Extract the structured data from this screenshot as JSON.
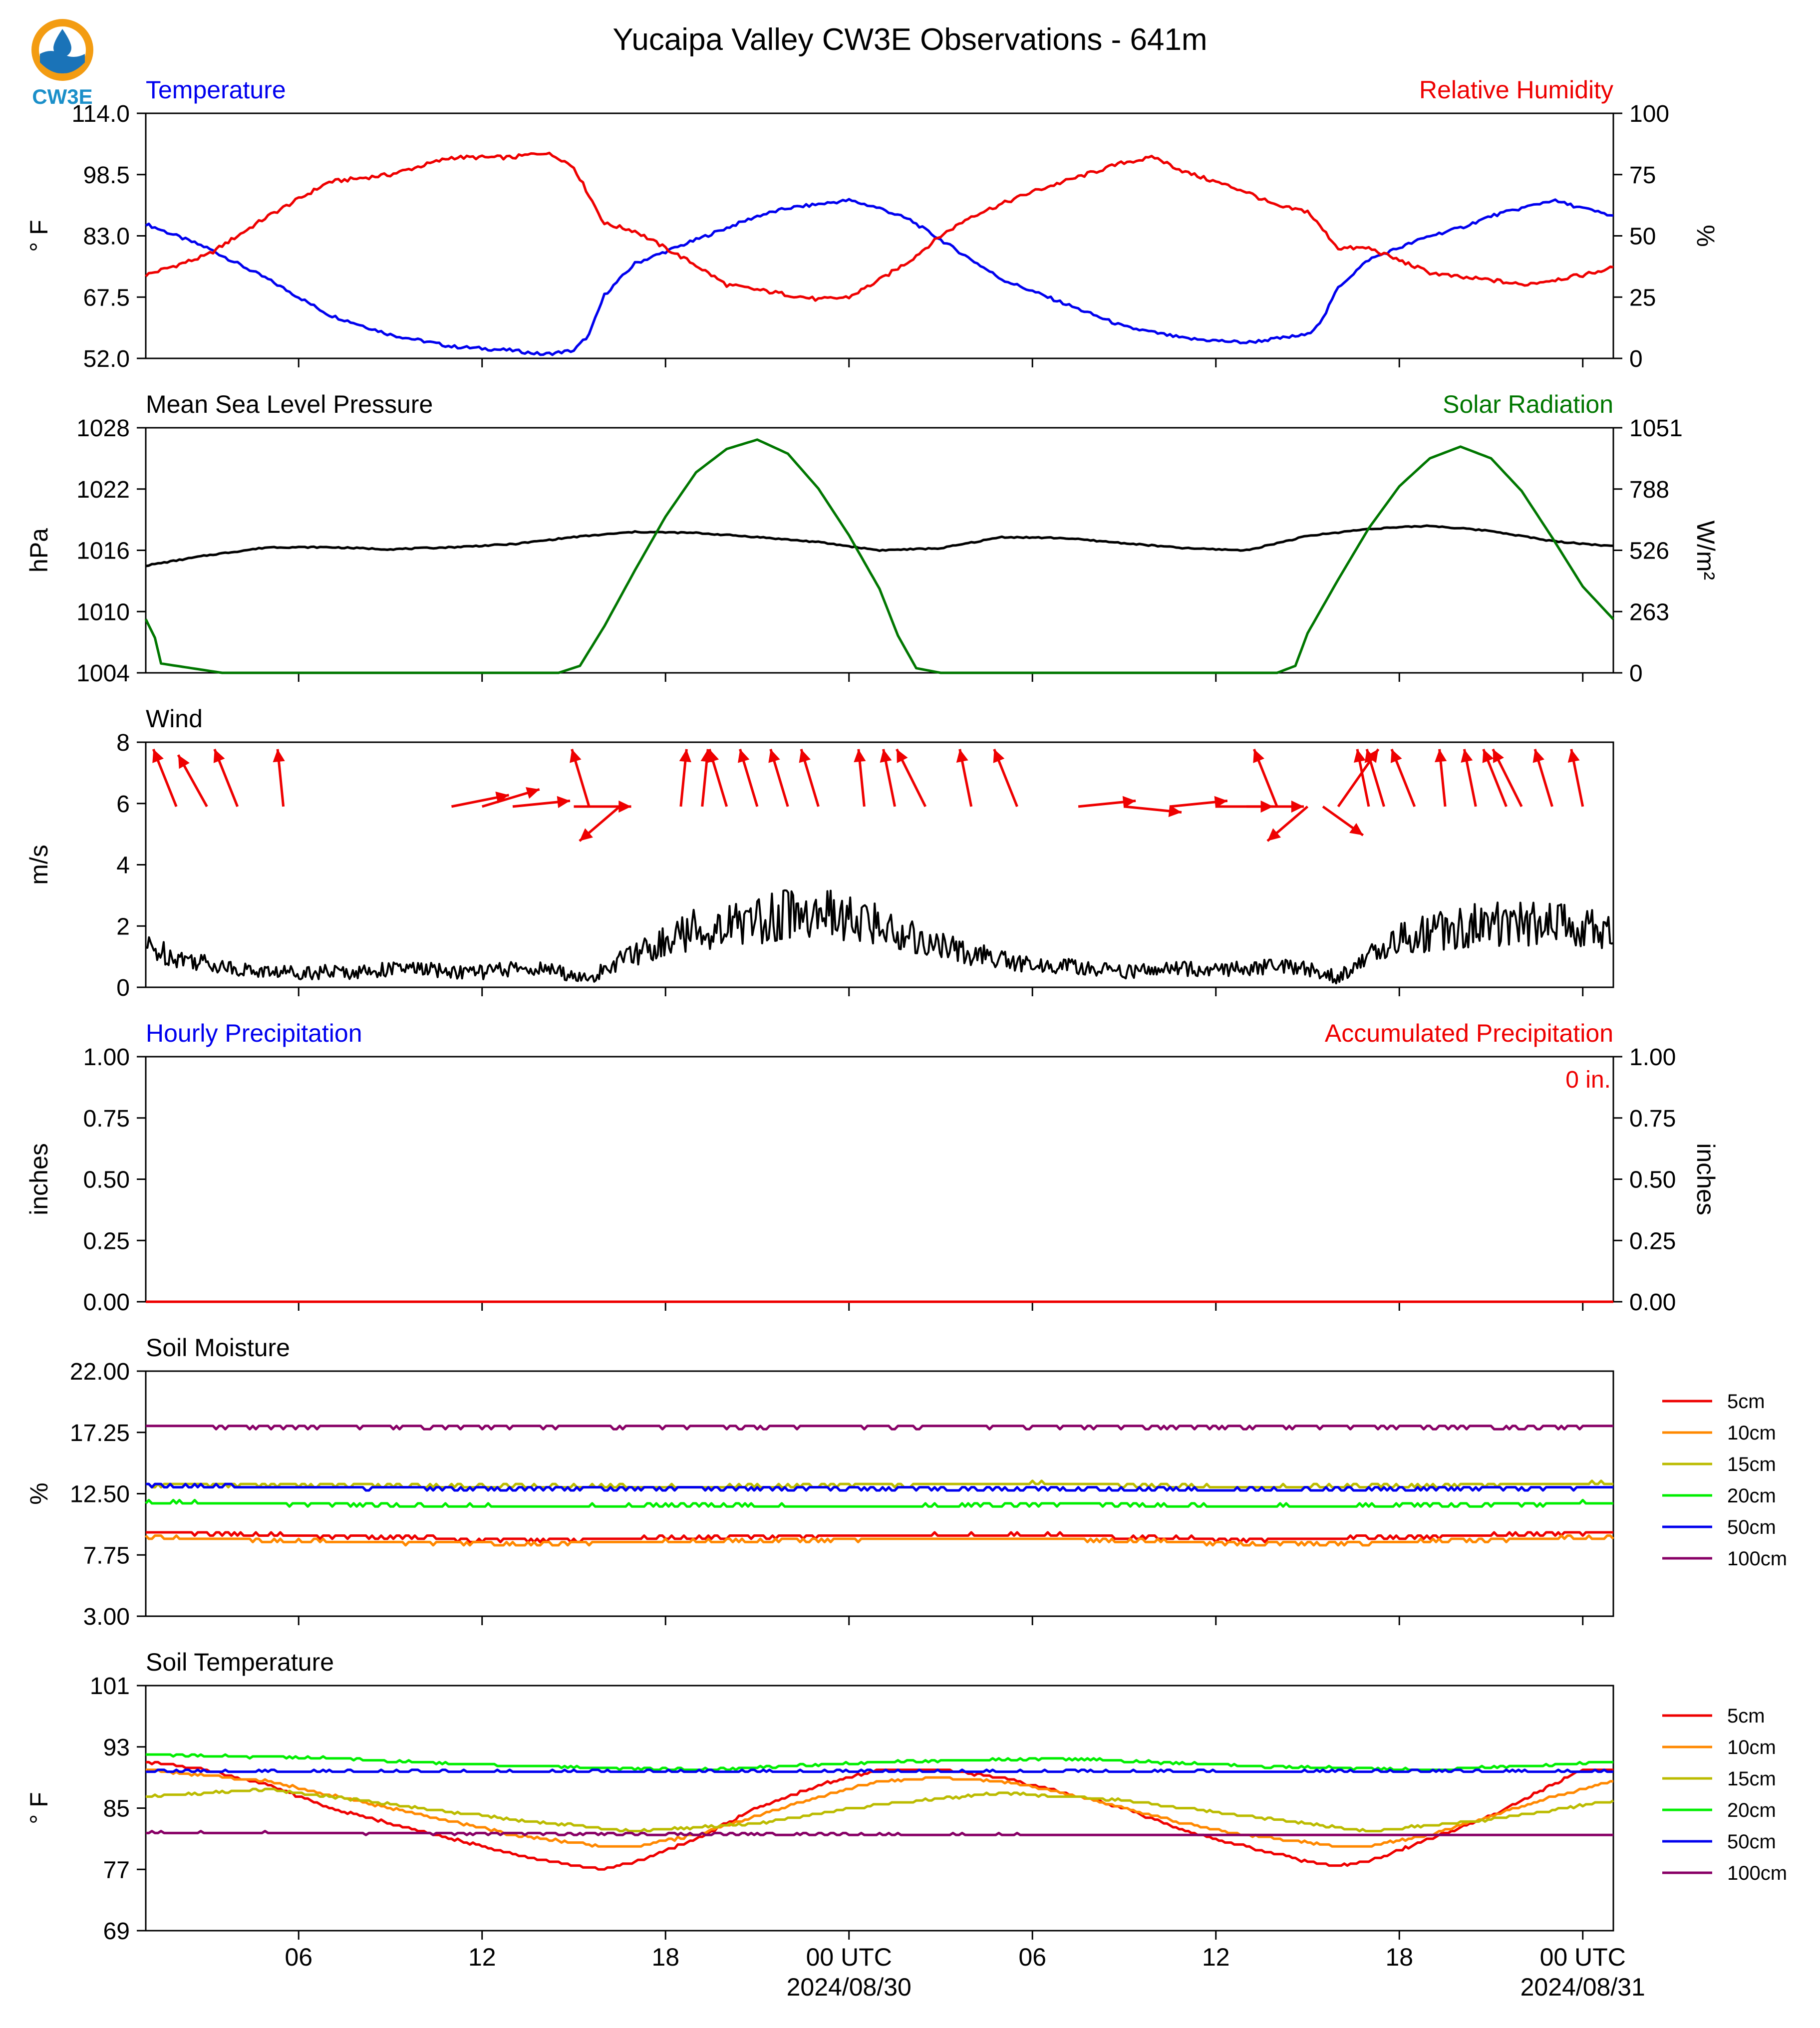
{
  "page": {
    "title": "Yucaipa Valley CW3E Observations - 641m",
    "logo_text": "CW3E",
    "colors": {
      "blue": "#0000ee",
      "red": "#ee0000",
      "green": "#007700",
      "black": "#000000"
    }
  },
  "chart_data": [
    {
      "id": "temp-rh",
      "type": "line",
      "title": "Temperature",
      "title_right": "Relative Humidity",
      "ylabel": "° F",
      "ylabel_right": "%",
      "ylim": [
        52.0,
        114.0
      ],
      "yticks": [
        "52.0",
        "67.5",
        "83.0",
        "98.5",
        "114.0"
      ],
      "ylim_right": [
        0,
        100
      ],
      "yticks_right": [
        "0",
        "25",
        "50",
        "75",
        "100"
      ],
      "series": [
        {
          "name": "Temperature",
          "color": "#0000ee",
          "axis": "left",
          "x": [
            0,
            2,
            4,
            6,
            8,
            10,
            12,
            13,
            14,
            14.5,
            15,
            16,
            17,
            18,
            19,
            20,
            21,
            22,
            23,
            24,
            25,
            26,
            27,
            28,
            30,
            32,
            34,
            36,
            37,
            38,
            38.5,
            39,
            40,
            41,
            42,
            43,
            44,
            45,
            46,
            47,
            48
          ],
          "values": [
            86,
            80,
            72,
            63,
            58,
            55,
            54,
            53,
            54,
            58,
            68,
            76,
            79,
            82,
            85,
            88,
            90,
            91,
            92,
            90,
            87,
            82,
            77,
            72,
            66,
            60,
            57,
            56,
            57,
            58,
            62,
            70,
            77,
            80,
            83,
            85,
            88,
            90,
            92,
            90,
            88
          ]
        },
        {
          "name": "Relative Humidity",
          "color": "#ee0000",
          "axis": "right",
          "x": [
            0,
            2,
            4,
            6,
            8,
            10,
            12,
            13,
            13.5,
            14,
            15,
            16,
            17,
            18,
            19,
            20,
            21,
            22,
            23,
            24,
            25,
            26,
            27,
            28,
            29,
            30,
            31,
            32,
            33,
            34,
            35,
            36,
            37,
            38,
            39,
            40,
            41,
            42,
            43,
            44,
            45,
            46,
            47,
            48
          ],
          "values": [
            34,
            42,
            58,
            72,
            75,
            82,
            82,
            84,
            82,
            78,
            55,
            52,
            45,
            38,
            30,
            28,
            26,
            24,
            25,
            32,
            40,
            50,
            58,
            63,
            68,
            72,
            76,
            80,
            82,
            76,
            72,
            68,
            62,
            60,
            45,
            45,
            40,
            35,
            33,
            32,
            30,
            32,
            34,
            37
          ]
        }
      ]
    },
    {
      "id": "pressure-solar",
      "type": "line",
      "title": "Mean Sea Level Pressure",
      "title_right": "Solar Radiation",
      "ylabel": "hPa",
      "ylabel_right": "W/m²",
      "ylim": [
        1004,
        1028
      ],
      "yticks": [
        "1004",
        "1010",
        "1016",
        "1022",
        "1028"
      ],
      "ylim_right": [
        0,
        1051
      ],
      "yticks_right": [
        "0",
        "263",
        "526",
        "788",
        "1051"
      ],
      "series": [
        {
          "name": "Mean Sea Level Pressure",
          "color": "#000000",
          "axis": "left",
          "x": [
            0,
            2,
            4,
            6,
            8,
            10,
            12,
            14,
            16,
            18,
            20,
            22,
            24,
            26,
            28,
            30,
            32,
            34,
            36,
            38,
            40,
            42,
            44,
            46,
            48
          ],
          "values": [
            1014.5,
            1015.5,
            1016.3,
            1016.3,
            1016.1,
            1016.3,
            1016.6,
            1017.3,
            1017.8,
            1017.7,
            1017.3,
            1016.8,
            1016.0,
            1016.2,
            1017.3,
            1017.2,
            1016.7,
            1016.2,
            1016.0,
            1017.4,
            1018.1,
            1018.4,
            1017.9,
            1016.9,
            1016.4
          ]
        },
        {
          "name": "Solar Radiation",
          "color": "#007700",
          "axis": "right",
          "x": [
            0,
            0.3,
            0.5,
            1.5,
            2.5,
            4,
            8,
            12,
            13.5,
            14.2,
            15,
            16,
            17,
            18,
            19,
            20,
            21,
            22,
            23,
            24,
            24.6,
            25.2,
            26,
            30,
            36,
            37,
            37.6,
            38,
            39,
            40,
            41,
            42,
            43,
            44,
            45,
            46,
            47,
            48
          ],
          "values": [
            230,
            150,
            40,
            20,
            0,
            0,
            0,
            0,
            0,
            30,
            200,
            440,
            670,
            860,
            960,
            1000,
            940,
            790,
            590,
            360,
            160,
            20,
            0,
            0,
            0,
            0,
            30,
            170,
            400,
            620,
            800,
            920,
            970,
            920,
            780,
            580,
            370,
            230
          ]
        }
      ]
    },
    {
      "id": "wind",
      "type": "line",
      "title": "Wind",
      "ylabel": "m/s",
      "ylim": [
        0,
        8
      ],
      "yticks": [
        "0",
        "2",
        "4",
        "6",
        "8"
      ],
      "series": [
        {
          "name": "Wind",
          "color": "#000000",
          "axis": "left",
          "x": [
            0,
            1,
            2,
            3,
            4,
            5,
            6,
            7,
            8,
            9,
            10,
            11,
            12,
            13,
            14,
            14.5,
            15,
            16,
            17,
            18,
            19,
            20,
            21,
            22,
            23,
            24,
            25,
            26,
            27,
            28,
            29,
            30,
            31,
            32,
            33,
            34,
            35,
            36,
            37,
            38,
            39,
            40,
            41,
            42,
            43,
            44,
            45,
            46,
            47,
            48
          ],
          "values": [
            1.3,
            1.0,
            0.8,
            0.6,
            0.5,
            0.5,
            0.5,
            0.5,
            0.6,
            0.6,
            0.5,
            0.5,
            0.6,
            0.6,
            0.4,
            0.2,
            0.6,
            1.1,
            1.5,
            1.9,
            2.0,
            2.2,
            2.4,
            2.4,
            2.2,
            2.0,
            1.7,
            1.3,
            1.1,
            0.9,
            0.7,
            0.7,
            0.6,
            0.5,
            0.6,
            0.6,
            0.6,
            0.6,
            0.7,
            0.6,
            0.3,
            1.0,
            1.6,
            1.8,
            2.0,
            2.1,
            2.1,
            2.0,
            2.0,
            1.8
          ]
        }
      ],
      "arrows": {
        "color": "#ee0000",
        "x": [
          1,
          2,
          3,
          4.5,
          10,
          11,
          12,
          14,
          14.5,
          15.5,
          17.5,
          18.2,
          19,
          20,
          21,
          22,
          23.5,
          24.5,
          25.5,
          27,
          28.5,
          30.5,
          32,
          33.5,
          35,
          36,
          37,
          38,
          38.5,
          39,
          40,
          40.5,
          41.5,
          42.5,
          43.5,
          44.5,
          45,
          46,
          47
        ],
        "u": [
          -0.4,
          -0.5,
          -0.4,
          -0.1,
          1.0,
          1.0,
          1.0,
          1.0,
          -0.3,
          -0.7,
          0.1,
          0.1,
          -0.3,
          -0.3,
          -0.3,
          -0.3,
          -0.1,
          -0.2,
          -0.5,
          -0.2,
          -0.4,
          1.0,
          1.0,
          1.0,
          1.0,
          1.0,
          -0.4,
          -0.7,
          0.7,
          0.7,
          -0.2,
          -0.3,
          -0.4,
          -0.1,
          -0.2,
          -0.4,
          -0.5,
          -0.3,
          -0.2
        ],
        "v": [
          1.0,
          0.9,
          1.0,
          1.0,
          0.2,
          0.3,
          0.1,
          0.0,
          1.0,
          -0.6,
          1.0,
          1.0,
          1.0,
          1.0,
          1.0,
          1.0,
          1.0,
          1.0,
          1.0,
          1.0,
          1.0,
          0.1,
          -0.1,
          0.1,
          0.0,
          0.0,
          1.0,
          -0.6,
          -0.5,
          1.0,
          1.0,
          1.0,
          1.0,
          1.0,
          1.0,
          1.0,
          1.0,
          1.0,
          1.0
        ]
      }
    },
    {
      "id": "precipitation",
      "type": "line",
      "title": "Hourly Precipitation",
      "title_right": "Accumulated Precipitation",
      "ylabel": "inches",
      "ylabel_right": "inches",
      "ylim": [
        0.0,
        1.0
      ],
      "yticks": [
        "0.00",
        "0.25",
        "0.50",
        "0.75",
        "1.00"
      ],
      "ylim_right": [
        0.0,
        1.0
      ],
      "yticks_right": [
        "0.00",
        "0.25",
        "0.50",
        "0.75",
        "1.00"
      ],
      "annotation": "0 in.",
      "series": [
        {
          "name": "Hourly Precipitation",
          "color": "#0000ee",
          "axis": "left",
          "x": [
            0,
            48
          ],
          "values": [
            0,
            0
          ]
        },
        {
          "name": "Accumulated Precipitation",
          "color": "#ee0000",
          "axis": "right",
          "x": [
            0,
            48
          ],
          "values": [
            0,
            0
          ]
        }
      ]
    },
    {
      "id": "soil-moisture",
      "type": "line",
      "title": "Soil Moisture",
      "ylabel": "%",
      "ylim": [
        3.0,
        22.0
      ],
      "yticks": [
        "3.00",
        "7.75",
        "12.50",
        "17.25",
        "22.00"
      ],
      "legend_position": "right",
      "series": [
        {
          "name": "5cm",
          "color": "#ee0000",
          "x": [
            0,
            6,
            12,
            18,
            24,
            30,
            36,
            42,
            48
          ],
          "values": [
            9.5,
            9.2,
            8.9,
            9.1,
            9.3,
            9.3,
            8.9,
            9.2,
            9.5
          ]
        },
        {
          "name": "10cm",
          "color": "#ff8800",
          "x": [
            0,
            6,
            12,
            18,
            24,
            30,
            36,
            42,
            48
          ],
          "values": [
            9.1,
            8.8,
            8.6,
            8.8,
            9.0,
            9.0,
            8.6,
            8.8,
            9.1
          ]
        },
        {
          "name": "15cm",
          "color": "#bbbb00",
          "x": [
            0,
            6,
            12,
            18,
            24,
            30,
            36,
            42,
            48
          ],
          "values": [
            13.2,
            13.2,
            13.1,
            13.0,
            13.2,
            13.3,
            13.0,
            13.1,
            13.3
          ]
        },
        {
          "name": "20cm",
          "color": "#00ee00",
          "x": [
            0,
            6,
            12,
            18,
            24,
            30,
            36,
            42,
            48
          ],
          "values": [
            11.8,
            11.7,
            11.5,
            11.6,
            11.5,
            11.7,
            11.5,
            11.6,
            11.8
          ]
        },
        {
          "name": "50cm",
          "color": "#0000ee",
          "x": [
            0,
            6,
            12,
            18,
            24,
            30,
            36,
            42,
            48
          ],
          "values": [
            13.1,
            13.0,
            12.9,
            12.9,
            12.9,
            12.9,
            12.8,
            12.9,
            13.0
          ]
        },
        {
          "name": "100cm",
          "color": "#880066",
          "x": [
            0,
            48
          ],
          "values": [
            17.7,
            17.7
          ]
        }
      ]
    },
    {
      "id": "soil-temperature",
      "type": "line",
      "title": "Soil Temperature",
      "ylabel": "° F",
      "ylim": [
        69,
        101
      ],
      "yticks": [
        "69",
        "77",
        "85",
        "93",
        "101"
      ],
      "legend_position": "right",
      "series": [
        {
          "name": "5cm",
          "color": "#ee0000",
          "x": [
            0,
            2,
            4,
            6,
            8,
            10,
            12,
            14,
            15,
            16,
            18,
            20,
            22,
            24,
            26,
            28,
            30,
            32,
            34,
            36,
            38,
            39,
            40,
            42,
            44,
            46,
            47,
            48
          ],
          "values": [
            91,
            90,
            88,
            85,
            83,
            81,
            79,
            77.5,
            77,
            78,
            81,
            85,
            88,
            90,
            90,
            89,
            87,
            85,
            82,
            80,
            78,
            77.5,
            78,
            81,
            84,
            88,
            90,
            90
          ]
        },
        {
          "name": "10cm",
          "color": "#ff8800",
          "x": [
            0,
            4,
            8,
            12,
            14,
            15,
            16,
            18,
            20,
            22,
            24,
            26,
            28,
            30,
            32,
            34,
            36,
            38,
            39,
            40,
            42,
            44,
            46,
            48
          ],
          "values": [
            90,
            88.5,
            85,
            81.5,
            80.5,
            80,
            80,
            81.5,
            84,
            86.5,
            88.5,
            89,
            88.5,
            87,
            85,
            83,
            81.5,
            80.5,
            80,
            80,
            81.5,
            84,
            86.5,
            88.5
          ]
        },
        {
          "name": "15cm",
          "color": "#bbbb00",
          "x": [
            0,
            4,
            8,
            12,
            16,
            20,
            24,
            28,
            32,
            36,
            40,
            44,
            48
          ],
          "values": [
            86.5,
            87.5,
            85.5,
            83.5,
            82,
            83,
            85.5,
            87,
            86,
            84,
            82,
            83.5,
            86
          ]
        },
        {
          "name": "20cm",
          "color": "#00ee00",
          "x": [
            0,
            6,
            12,
            18,
            24,
            30,
            36,
            42,
            48
          ],
          "values": [
            92,
            91.5,
            90.5,
            90,
            91,
            91.5,
            90.5,
            90,
            91
          ]
        },
        {
          "name": "50cm",
          "color": "#0000ee",
          "x": [
            0,
            48
          ],
          "values": [
            89.8,
            89.8
          ]
        },
        {
          "name": "100cm",
          "color": "#880066",
          "x": [
            0,
            10,
            20,
            30,
            48
          ],
          "values": [
            81.8,
            81.7,
            81.6,
            81.5,
            81.5
          ]
        }
      ]
    }
  ],
  "x_axis": {
    "range_hours": [
      0,
      48
    ],
    "ticks": [
      {
        "hour": 5,
        "label": "06",
        "date": ""
      },
      {
        "hour": 11,
        "label": "12",
        "date": ""
      },
      {
        "hour": 17,
        "label": "18",
        "date": ""
      },
      {
        "hour": 23,
        "label": "00 UTC",
        "date": "2024/08/30"
      },
      {
        "hour": 29,
        "label": "06",
        "date": ""
      },
      {
        "hour": 35,
        "label": "12",
        "date": ""
      },
      {
        "hour": 41,
        "label": "18",
        "date": ""
      },
      {
        "hour": 47,
        "label": "00 UTC",
        "date": "2024/08/31"
      }
    ]
  }
}
